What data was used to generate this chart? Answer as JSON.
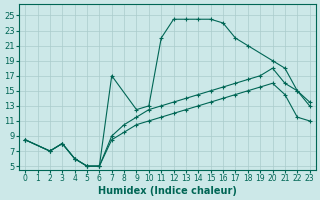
{
  "xlabel": "Humidex (Indice chaleur)",
  "bg_color": "#cce8e8",
  "grid_color": "#aacccc",
  "line_color": "#006655",
  "xlim": [
    -0.5,
    23.5
  ],
  "ylim": [
    4.5,
    26.5
  ],
  "xticks": [
    0,
    1,
    2,
    3,
    4,
    5,
    6,
    7,
    8,
    9,
    10,
    11,
    12,
    13,
    14,
    15,
    16,
    17,
    18,
    19,
    20,
    21,
    22,
    23
  ],
  "yticks": [
    5,
    7,
    9,
    11,
    13,
    15,
    17,
    19,
    21,
    23,
    25
  ],
  "line_top_x": [
    0,
    2,
    3,
    4,
    5,
    6,
    7,
    9,
    10,
    11,
    12,
    13,
    14,
    15,
    16,
    17,
    18,
    20,
    21,
    22,
    23
  ],
  "line_top_y": [
    8.5,
    7.0,
    8.0,
    6.0,
    5.0,
    5.0,
    17.0,
    12.5,
    13.0,
    22.0,
    24.5,
    24.5,
    24.5,
    24.5,
    24.0,
    22.0,
    21.0,
    19.0,
    18.0,
    15.0,
    13.0
  ],
  "line_mid_x": [
    0,
    2,
    3,
    4,
    5,
    6,
    7,
    8,
    9,
    10,
    11,
    12,
    13,
    14,
    15,
    16,
    17,
    18,
    19,
    20,
    21,
    22,
    23
  ],
  "line_mid_y": [
    8.5,
    7.0,
    8.0,
    6.0,
    5.0,
    5.0,
    9.0,
    10.5,
    11.5,
    12.5,
    13.0,
    13.5,
    14.0,
    14.5,
    15.0,
    15.5,
    16.0,
    16.5,
    17.0,
    18.0,
    16.0,
    15.0,
    13.5
  ],
  "line_bot_x": [
    0,
    2,
    3,
    4,
    5,
    6,
    7,
    8,
    9,
    10,
    11,
    12,
    13,
    14,
    15,
    16,
    17,
    18,
    19,
    20,
    21,
    22,
    23
  ],
  "line_bot_y": [
    8.5,
    7.0,
    8.0,
    6.0,
    5.0,
    5.0,
    8.5,
    9.5,
    10.5,
    11.0,
    11.5,
    12.0,
    12.5,
    13.0,
    13.5,
    14.0,
    14.5,
    15.0,
    15.5,
    16.0,
    14.5,
    11.5,
    11.0
  ]
}
